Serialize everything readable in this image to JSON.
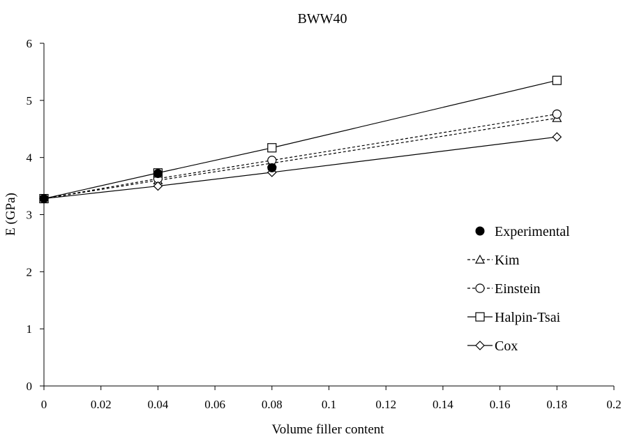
{
  "chart_data": {
    "type": "line",
    "title": "BWW40",
    "xlabel": "Volume filler content",
    "ylabel": "E (GPa)",
    "xlim": [
      0,
      0.2
    ],
    "ylim": [
      0,
      6
    ],
    "x_ticks": [
      0,
      0.02,
      0.04,
      0.06,
      0.08,
      0.1,
      0.12,
      0.14,
      0.16,
      0.18,
      0.2
    ],
    "x_tick_labels": [
      "0",
      "0.02",
      "0.04",
      "0.06",
      "0.08",
      "0.1",
      "0.12",
      "0.14",
      "0.16",
      "0.18",
      "0.2"
    ],
    "y_ticks": [
      0,
      1,
      2,
      3,
      4,
      5,
      6
    ],
    "y_tick_labels": [
      "0",
      "1",
      "2",
      "3",
      "4",
      "5",
      "6"
    ],
    "grid": false,
    "legend_position": "right",
    "series": [
      {
        "name": "Experimental",
        "marker": "filled-circle",
        "line": "none",
        "x": [
          0,
          0.04,
          0.08
        ],
        "y": [
          3.28,
          3.72,
          3.82
        ]
      },
      {
        "name": "Kim",
        "marker": "open-triangle",
        "line": "dashed",
        "x": [
          0,
          0.04,
          0.08,
          0.18
        ],
        "y": [
          3.28,
          3.6,
          3.9,
          4.69
        ]
      },
      {
        "name": "Einstein",
        "marker": "open-circle",
        "line": "dashed",
        "x": [
          0,
          0.04,
          0.08,
          0.18
        ],
        "y": [
          3.28,
          3.63,
          3.95,
          4.76
        ]
      },
      {
        "name": "Halpin-Tsai",
        "marker": "open-square",
        "line": "solid",
        "x": [
          0,
          0.04,
          0.08,
          0.18
        ],
        "y": [
          3.28,
          3.73,
          4.17,
          5.35
        ]
      },
      {
        "name": "Cox",
        "marker": "open-diamond",
        "line": "solid",
        "x": [
          0,
          0.04,
          0.08,
          0.18
        ],
        "y": [
          3.28,
          3.5,
          3.74,
          4.36
        ]
      }
    ]
  }
}
